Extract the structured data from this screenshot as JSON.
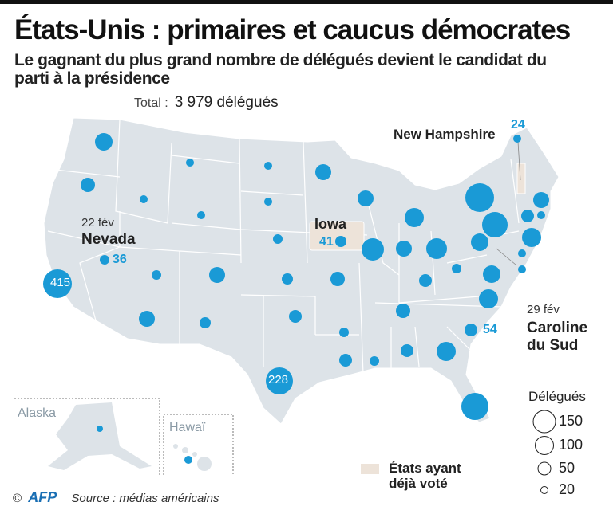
{
  "header": {
    "title": "États-Unis : primaires et caucus démocrates",
    "subtitle": "Le gagnant du plus grand nombre de délégués devient le candidat du parti à la présidence",
    "total_label": "Total :",
    "total_value": "3 979 délégués"
  },
  "highlights": {
    "nevada": {
      "date": "22 fév",
      "state": "Nevada",
      "delegates": "36"
    },
    "california": {
      "delegates": "415"
    },
    "texas": {
      "delegates": "228"
    },
    "iowa": {
      "state": "Iowa",
      "delegates": "41"
    },
    "new_hampshire": {
      "state": "New Hampshire",
      "delegates": "24"
    },
    "south_carolina": {
      "date": "29 fév",
      "state_line1": "Caroline",
      "state_line2": "du Sud",
      "delegates": "54"
    }
  },
  "insets": {
    "alaska": "Alaska",
    "hawaii": "Hawaï"
  },
  "legend": {
    "title": "Délégués",
    "sizes": [
      "150",
      "100",
      "50",
      "20"
    ],
    "voted_label_line1": "États ayant",
    "voted_label_line2": "déjà voté"
  },
  "footer": {
    "copyright": "©",
    "logo": "AFP",
    "source": "Source : médias américains"
  },
  "colors": {
    "bubble": "#1a9ad6",
    "land": "#dde3e8",
    "voted": "#ede3d9",
    "border": "#ffffff"
  }
}
